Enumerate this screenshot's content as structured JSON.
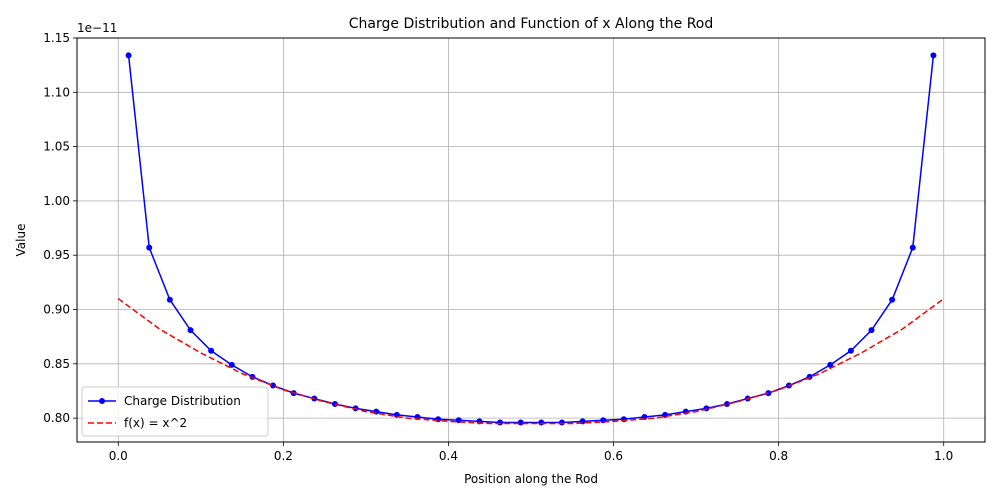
{
  "chart_data": {
    "type": "line",
    "title": "Charge Distribution and Function of x Along the Rod",
    "xlabel": "Position along the Rod",
    "ylabel": "Value",
    "y_offset_text": "1e−11",
    "y_scale_factor": 1e-11,
    "xlim": [
      -0.05,
      1.05
    ],
    "ylim": [
      0.778,
      1.15
    ],
    "x_ticks": [
      0.0,
      0.2,
      0.4,
      0.6,
      0.8,
      1.0
    ],
    "x_tick_labels": [
      "0.0",
      "0.2",
      "0.4",
      "0.6",
      "0.8",
      "1.0"
    ],
    "y_ticks": [
      0.8,
      0.85,
      0.9,
      0.95,
      1.0,
      1.05,
      1.1,
      1.15
    ],
    "y_tick_labels": [
      "0.80",
      "0.85",
      "0.90",
      "0.95",
      "1.00",
      "1.05",
      "1.10",
      "1.15"
    ],
    "grid": true,
    "legend_position": "lower-left",
    "series": [
      {
        "name": "Charge Distribution",
        "color": "#0000ff",
        "style": "solid",
        "marker": "circle",
        "x": [
          0.0125,
          0.0375,
          0.0625,
          0.0875,
          0.1125,
          0.1375,
          0.1625,
          0.1875,
          0.2125,
          0.2375,
          0.2625,
          0.2875,
          0.3125,
          0.3375,
          0.3625,
          0.3875,
          0.4125,
          0.4375,
          0.4625,
          0.4875,
          0.5125,
          0.5375,
          0.5625,
          0.5875,
          0.6125,
          0.6375,
          0.6625,
          0.6875,
          0.7125,
          0.7375,
          0.7625,
          0.7875,
          0.8125,
          0.8375,
          0.8625,
          0.8875,
          0.9125,
          0.9375,
          0.9625,
          0.9875
        ],
        "y": [
          1.134,
          0.957,
          0.909,
          0.881,
          0.862,
          0.849,
          0.838,
          0.83,
          0.823,
          0.818,
          0.813,
          0.809,
          0.806,
          0.803,
          0.801,
          0.799,
          0.798,
          0.797,
          0.796,
          0.796,
          0.796,
          0.796,
          0.797,
          0.798,
          0.799,
          0.801,
          0.803,
          0.806,
          0.809,
          0.813,
          0.818,
          0.823,
          0.83,
          0.838,
          0.849,
          0.862,
          0.881,
          0.909,
          0.957,
          1.134
        ]
      },
      {
        "name": "f(x) = x^2",
        "color": "#ff0000",
        "style": "dashed",
        "marker": "none",
        "x": [
          0.0,
          0.05,
          0.1,
          0.15,
          0.2,
          0.25,
          0.3,
          0.35,
          0.4,
          0.45,
          0.5,
          0.55,
          0.6,
          0.65,
          0.7,
          0.75,
          0.8,
          0.85,
          0.9,
          0.95,
          1.0
        ],
        "y": [
          0.91,
          0.882,
          0.86,
          0.841,
          0.826,
          0.815,
          0.806,
          0.8,
          0.797,
          0.795,
          0.795,
          0.795,
          0.797,
          0.8,
          0.806,
          0.815,
          0.826,
          0.841,
          0.86,
          0.882,
          0.91
        ]
      }
    ]
  }
}
